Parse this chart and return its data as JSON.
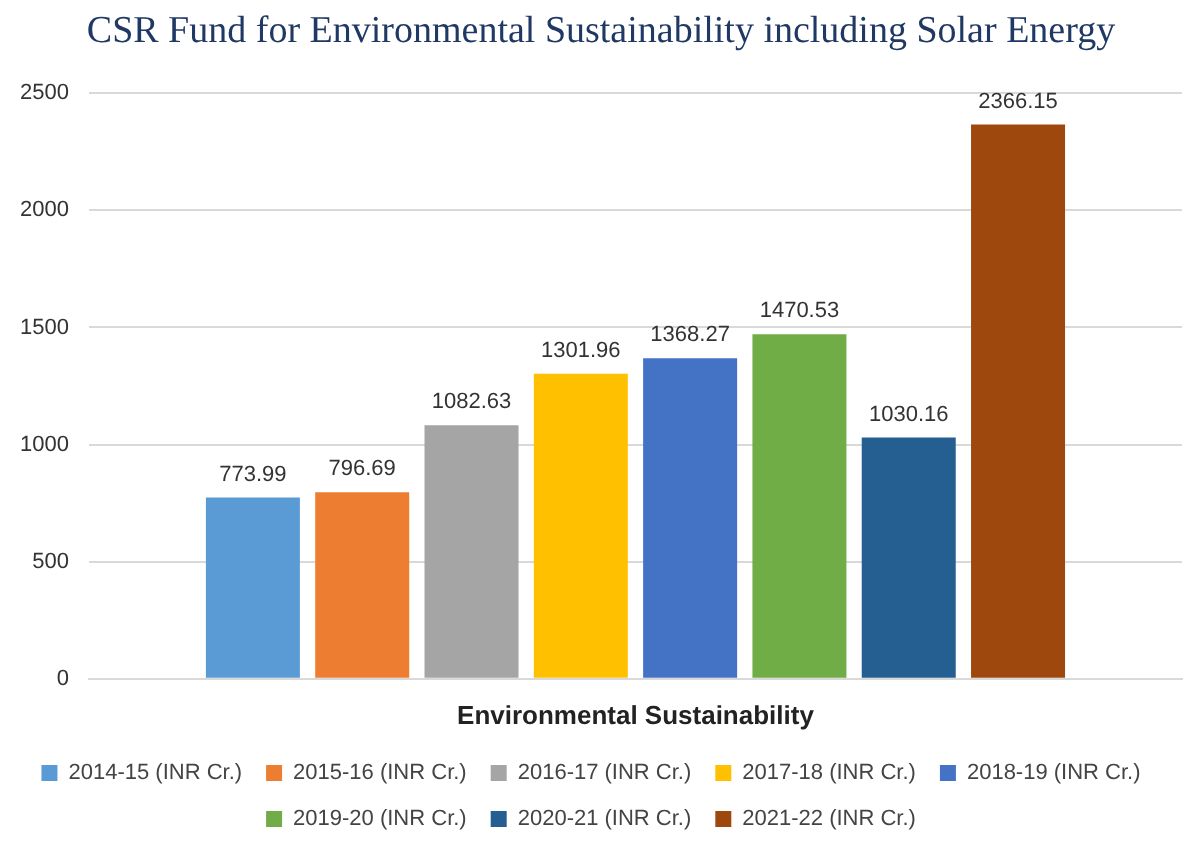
{
  "chart_data": {
    "type": "bar",
    "title": "CSR Fund for Environmental Sustainability including Solar Energy",
    "categories": [
      "Environmental Sustainability"
    ],
    "series": [
      {
        "name": "2014-15 (INR Cr.)",
        "color": "#5b9bd5",
        "values": [
          773.99
        ]
      },
      {
        "name": "2015-16 (INR Cr.)",
        "color": "#ed7d31",
        "values": [
          796.69
        ]
      },
      {
        "name": "2016-17 (INR Cr.)",
        "color": "#a5a5a5",
        "values": [
          1082.63
        ]
      },
      {
        "name": "2017-18 (INR Cr.)",
        "color": "#ffc000",
        "values": [
          1301.96
        ]
      },
      {
        "name": "2018-19 (INR Cr.)",
        "color": "#4472c4",
        "values": [
          1368.27
        ]
      },
      {
        "name": "2019-20 (INR Cr.)",
        "color": "#70ad47",
        "values": [
          1470.53
        ]
      },
      {
        "name": "2020-21 (INR Cr.)",
        "color": "#255e91",
        "values": [
          1030.16
        ]
      },
      {
        "name": "2021-22 (INR Cr.)",
        "color": "#9e480e",
        "values": [
          2366.15
        ]
      }
    ],
    "ylim": [
      0,
      2500
    ],
    "yticks": [
      0,
      500,
      1000,
      1500,
      2000,
      2500
    ],
    "grid": "y",
    "legend": "bottom",
    "data_labels": true
  }
}
